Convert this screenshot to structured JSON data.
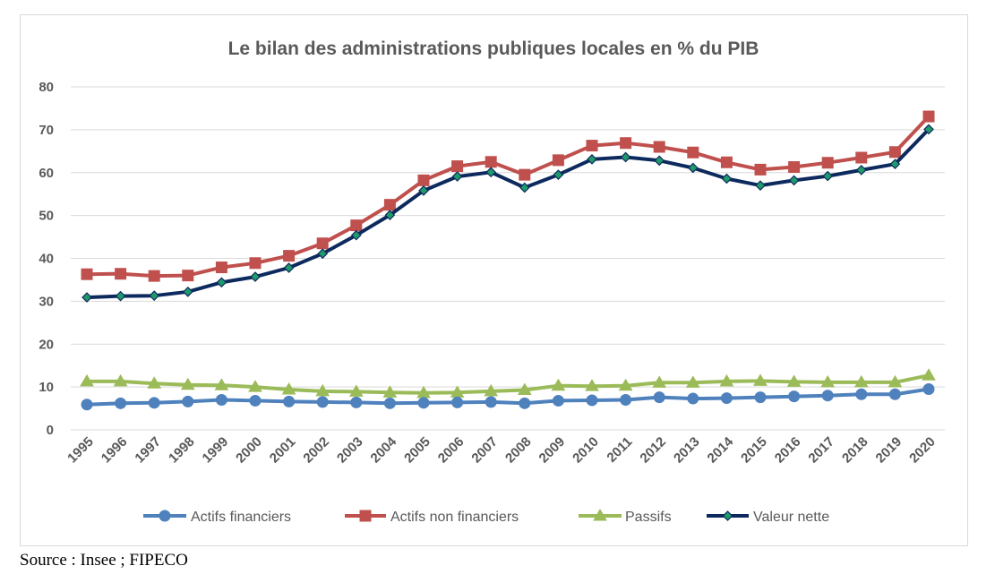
{
  "chart_data": {
    "type": "line",
    "title": "Le bilan des administrations publiques locales en % du PIB",
    "xlabel": "",
    "ylabel": "",
    "ylim": [
      0,
      80
    ],
    "yticks": [
      "0",
      "10",
      "20",
      "30",
      "40",
      "50",
      "60",
      "70",
      "80"
    ],
    "grid": true,
    "legend_position": "bottom",
    "categories": [
      "1995",
      "1996",
      "1997",
      "1998",
      "1999",
      "2000",
      "2001",
      "2002",
      "2003",
      "2004",
      "2005",
      "2006",
      "2007",
      "2008",
      "2009",
      "2010",
      "2011",
      "2012",
      "2013",
      "2014",
      "2015",
      "2016",
      "2017",
      "2018",
      "2019",
      "2020"
    ],
    "series": [
      {
        "name": "Actifs financiers",
        "color": "#4f81bd",
        "marker": "circle",
        "values": [
          5.9,
          6.2,
          6.3,
          6.6,
          7.0,
          6.8,
          6.6,
          6.5,
          6.4,
          6.2,
          6.3,
          6.4,
          6.5,
          6.2,
          6.8,
          6.9,
          7.0,
          7.6,
          7.3,
          7.4,
          7.6,
          7.8,
          8.0,
          8.3,
          8.3,
          9.5
        ]
      },
      {
        "name": "Actifs non financiers",
        "color": "#c0504d",
        "marker": "square",
        "values": [
          36.3,
          36.4,
          35.9,
          36.0,
          37.9,
          38.9,
          40.6,
          43.5,
          47.7,
          52.5,
          58.2,
          61.5,
          62.5,
          59.5,
          62.9,
          66.3,
          66.9,
          66.0,
          64.7,
          62.4,
          60.7,
          61.3,
          62.3,
          63.5,
          64.8,
          73.1
        ]
      },
      {
        "name": "Passifs",
        "color": "#9bbb59",
        "marker": "triangle",
        "values": [
          11.3,
          11.3,
          10.8,
          10.5,
          10.4,
          10.0,
          9.4,
          9.0,
          8.9,
          8.7,
          8.6,
          8.7,
          9.0,
          9.3,
          10.3,
          10.2,
          10.3,
          11.0,
          11.0,
          11.3,
          11.4,
          11.2,
          11.1,
          11.1,
          11.1,
          12.7
        ]
      },
      {
        "name": "Valeur nette",
        "color": "#0d2a5e",
        "marker": "diamond",
        "marker_fill": "#1f9a6a",
        "values": [
          30.9,
          31.2,
          31.3,
          32.2,
          34.4,
          35.7,
          37.8,
          41.1,
          45.4,
          50.1,
          55.8,
          59.1,
          60.1,
          56.5,
          59.5,
          63.1,
          63.6,
          62.8,
          61.1,
          58.6,
          57.0,
          58.2,
          59.2,
          60.6,
          62.0,
          70.1
        ]
      }
    ]
  },
  "source": "Source : Insee ; FIPECO"
}
